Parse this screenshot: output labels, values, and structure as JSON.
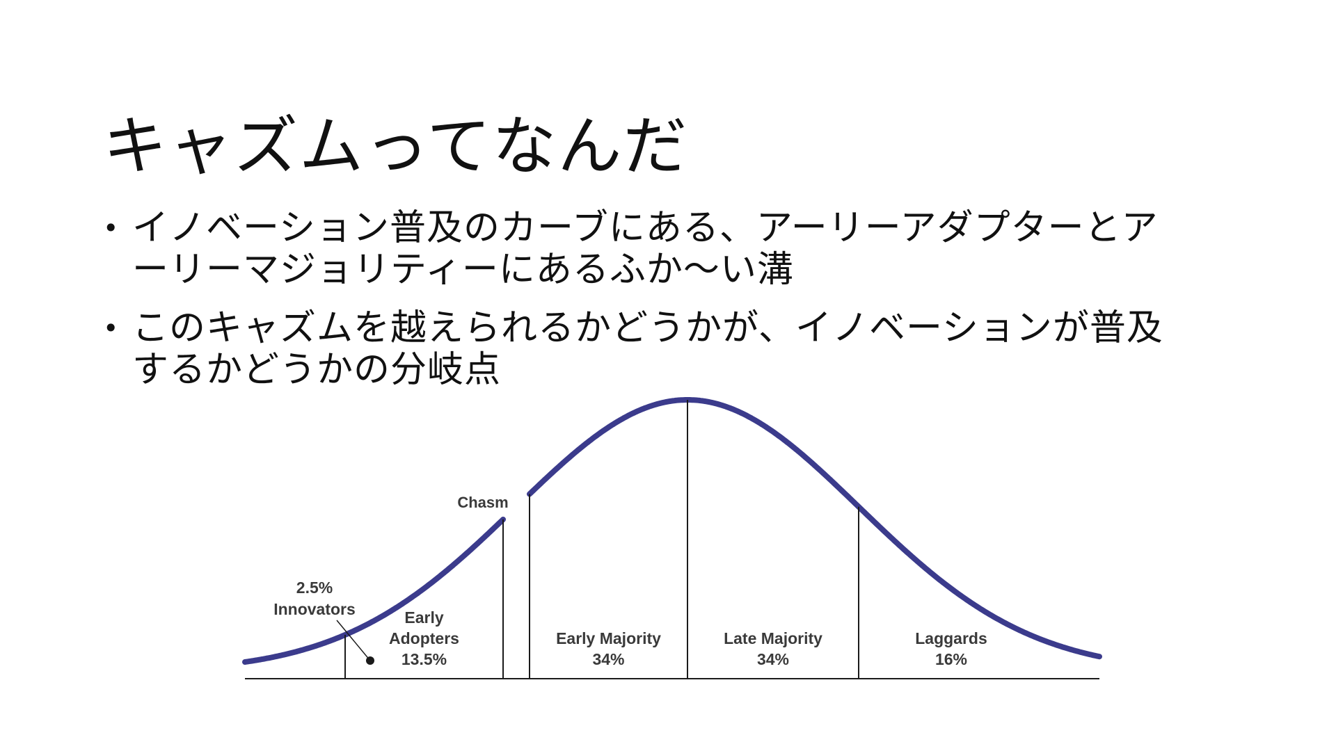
{
  "slide": {
    "title": "キャズムってなんだ",
    "bullets": [
      {
        "marker": "•",
        "line1": "イノベーション普及のカーブにある、アーリーアダプターとア",
        "line2": "ーリーマジョリティーにあるふか〜い溝"
      },
      {
        "marker": "•",
        "line1": "このキャズムを越えられるかどうかが、イノベーションが普及",
        "line2": "するかどうかの分岐点"
      }
    ]
  },
  "chart_data": {
    "type": "area",
    "curve": "normal-distribution (diffusion of innovations)",
    "curve_color": "#3b3b8c",
    "divider_color": "#1a1a1a",
    "annotation": "Chasm",
    "segments": [
      {
        "name": "Innovators",
        "percent_label": "2.5%",
        "value": 2.5
      },
      {
        "name": "Early Adopters",
        "percent_label": "13.5%",
        "value": 13.5
      },
      {
        "name": "Early Majority",
        "percent_label": "34%",
        "value": 34
      },
      {
        "name": "Late Majority",
        "percent_label": "34%",
        "value": 34
      },
      {
        "name": "Laggards",
        "percent_label": "16%",
        "value": 16
      }
    ],
    "labels": {
      "innovators_pct": "2.5%",
      "innovators": "Innovators",
      "early_adopters_1": "Early",
      "early_adopters_2": "Adopters",
      "early_adopters_pct": "13.5%",
      "early_majority": "Early Majority",
      "early_majority_pct": "34%",
      "late_majority": "Late Majority",
      "late_majority_pct": "34%",
      "laggards": "Laggards",
      "laggards_pct": "16%"
    },
    "sigma_bounds": [
      -2,
      -1,
      0,
      1
    ],
    "chasm_between": [
      "Early Adopters",
      "Early Majority"
    ]
  }
}
